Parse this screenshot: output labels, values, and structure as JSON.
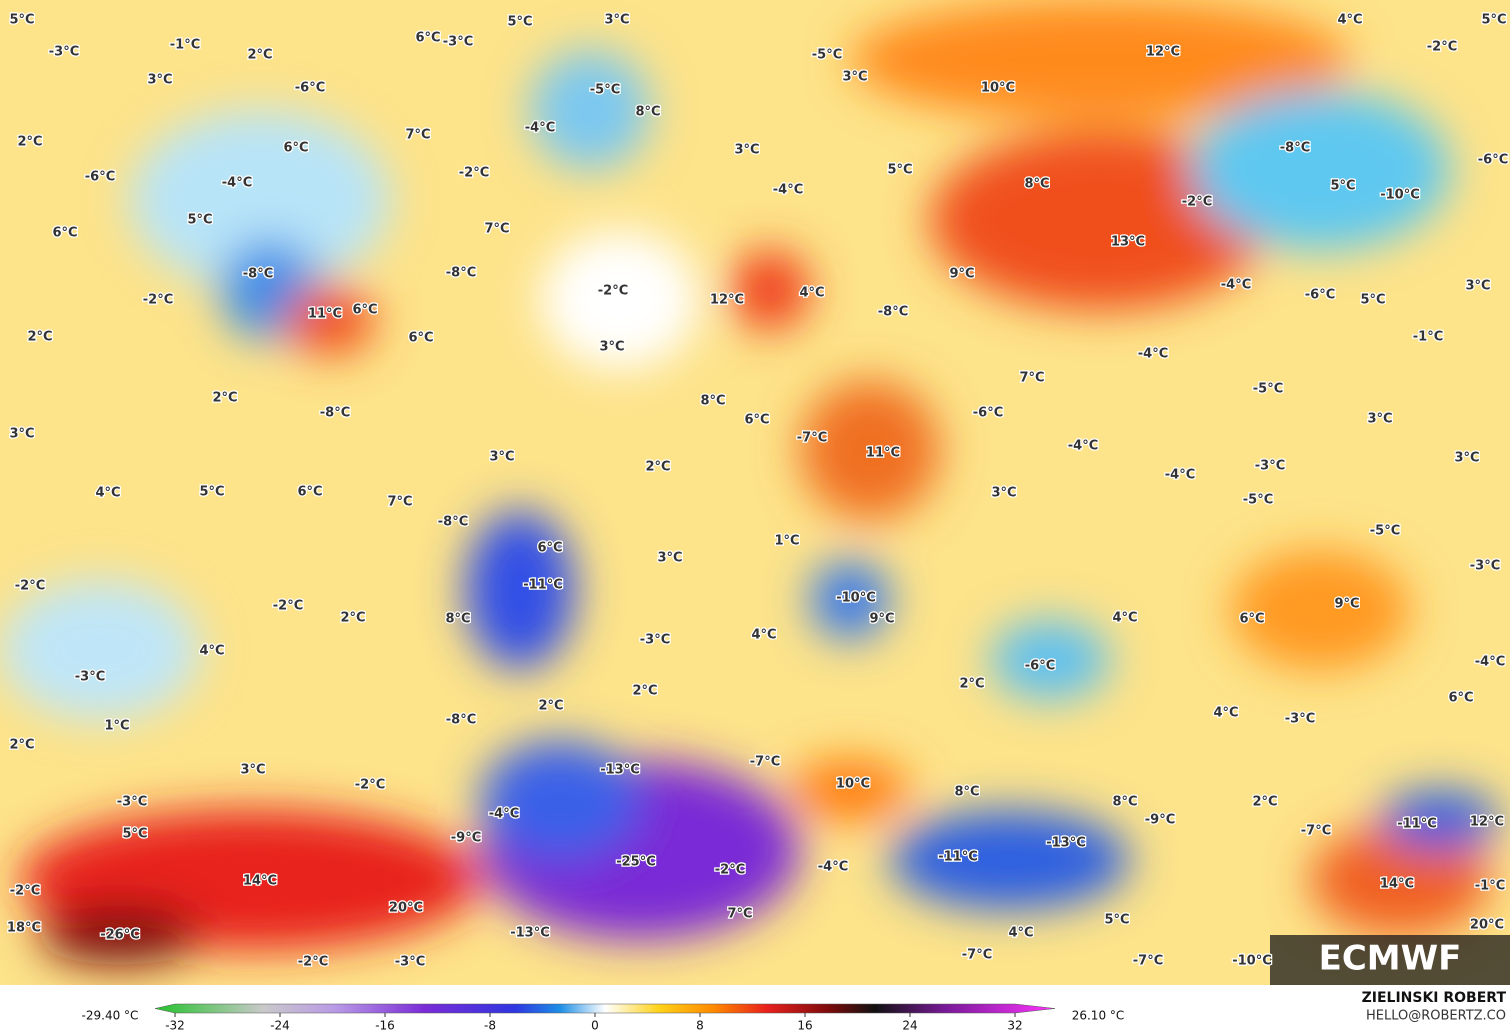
{
  "map": {
    "labels": [
      "5°C",
      "-3°C",
      "-1°C",
      "2°C",
      "3°C",
      "5°C",
      "3°C",
      "6°C",
      "-3°C",
      "-5°C",
      "3°C",
      "12°C",
      "4°C",
      "-2°C",
      "5°C",
      "2°C",
      "-6°C",
      "5°C",
      "6°C",
      "-4°C",
      "-6°C",
      "6°C",
      "-5°C",
      "-4°C",
      "8°C",
      "7°C",
      "-2°C",
      "3°C",
      "10°C",
      "-4°C",
      "5°C",
      "8°C",
      "-8°C",
      "-6°C",
      "5°C",
      "-2°C",
      "-10°C",
      "7°C",
      "-8°C",
      "-8°C",
      "-2°C",
      "11°C",
      "6°C",
      "-2°C",
      "12°C",
      "9°C",
      "13°C",
      "-4°C",
      "-6°C",
      "5°C",
      "3°C",
      "-1°C",
      "2°C",
      "6°C",
      "3°C",
      "4°C",
      "-8°C",
      "2°C",
      "-8°C",
      "8°C",
      "6°C",
      "-4°C",
      "7°C",
      "-6°C",
      "-5°C",
      "3°C",
      "3°C",
      "3°C",
      "-7°C",
      "11°C",
      "-4°C",
      "3°C",
      "2°C",
      "-3°C",
      "-4°C",
      "-5°C",
      "-5°C",
      "4°C",
      "5°C",
      "6°C",
      "7°C",
      "-8°C",
      "3°C",
      "6°C",
      "1°C",
      "3°C",
      "-11°C",
      "-3°C",
      "-2°C",
      "-2°C",
      "2°C",
      "8°C",
      "-10°C",
      "9°C",
      "4°C",
      "6°C",
      "9°C",
      "-3°C",
      "4°C",
      "4°C",
      "-3°C",
      "-6°C",
      "-4°C",
      "2°C",
      "2°C",
      "2°C",
      "6°C",
      "1°C",
      "-8°C",
      "4°C",
      "-3°C",
      "2°C",
      "-13°C",
      "-7°C",
      "3°C",
      "-2°C",
      "10°C",
      "8°C",
      "8°C",
      "2°C",
      "-3°C",
      "-9°C",
      "-7°C",
      "-11°C",
      "12°C",
      "5°C",
      "-9°C",
      "-4°C",
      "-13°C",
      "-11°C",
      "-25°C",
      "-2°C",
      "-4°C",
      "14°C",
      "14°C",
      "-1°C",
      "-2°C",
      "20°C",
      "7°C",
      "5°C",
      "18°C",
      "-26°C",
      "-13°C",
      "4°C",
      "20°C",
      "-7°C",
      "-7°C",
      "-10°C",
      "-2°C",
      "-3°C"
    ]
  },
  "colorbar": {
    "min_label": "-29.40 °C",
    "max_label": "26.10 °C",
    "ticks": [
      -32,
      -24,
      -16,
      -8,
      0,
      8,
      16,
      24,
      32
    ]
  },
  "credits": {
    "author": "ZIELINSKI ROBERT",
    "contact": "HELLO@ROBERTZ.CO",
    "logo": "ECMWF"
  }
}
